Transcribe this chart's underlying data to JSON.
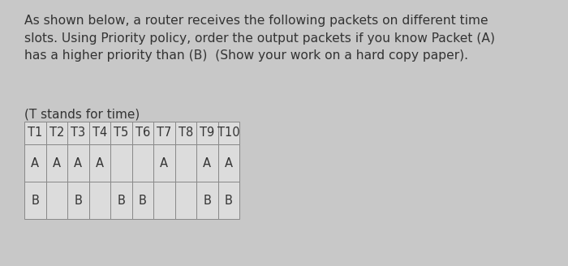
{
  "title_text": "As shown below, a router receives the following packets on different time\nslots. Using Priority policy, order the output packets if you know Packet (A)\nhas a higher priority than (B)  (Show your work on a hard copy paper).",
  "subtitle_text": "(T stands for time)",
  "columns": [
    "T1",
    "T2",
    "T3",
    "T4",
    "T5",
    "T6",
    "T7",
    "T8",
    "T9",
    "T10"
  ],
  "row_A": [
    1,
    1,
    1,
    1,
    0,
    0,
    1,
    0,
    1,
    1
  ],
  "row_B": [
    1,
    0,
    1,
    0,
    1,
    1,
    0,
    0,
    1,
    1
  ],
  "bg_color": "#c8c8c8",
  "cell_bg": "#dcdcdc",
  "text_color": "#333333",
  "font_size_body": 11,
  "font_size_title": 11.2,
  "font_size_table": 10.5
}
